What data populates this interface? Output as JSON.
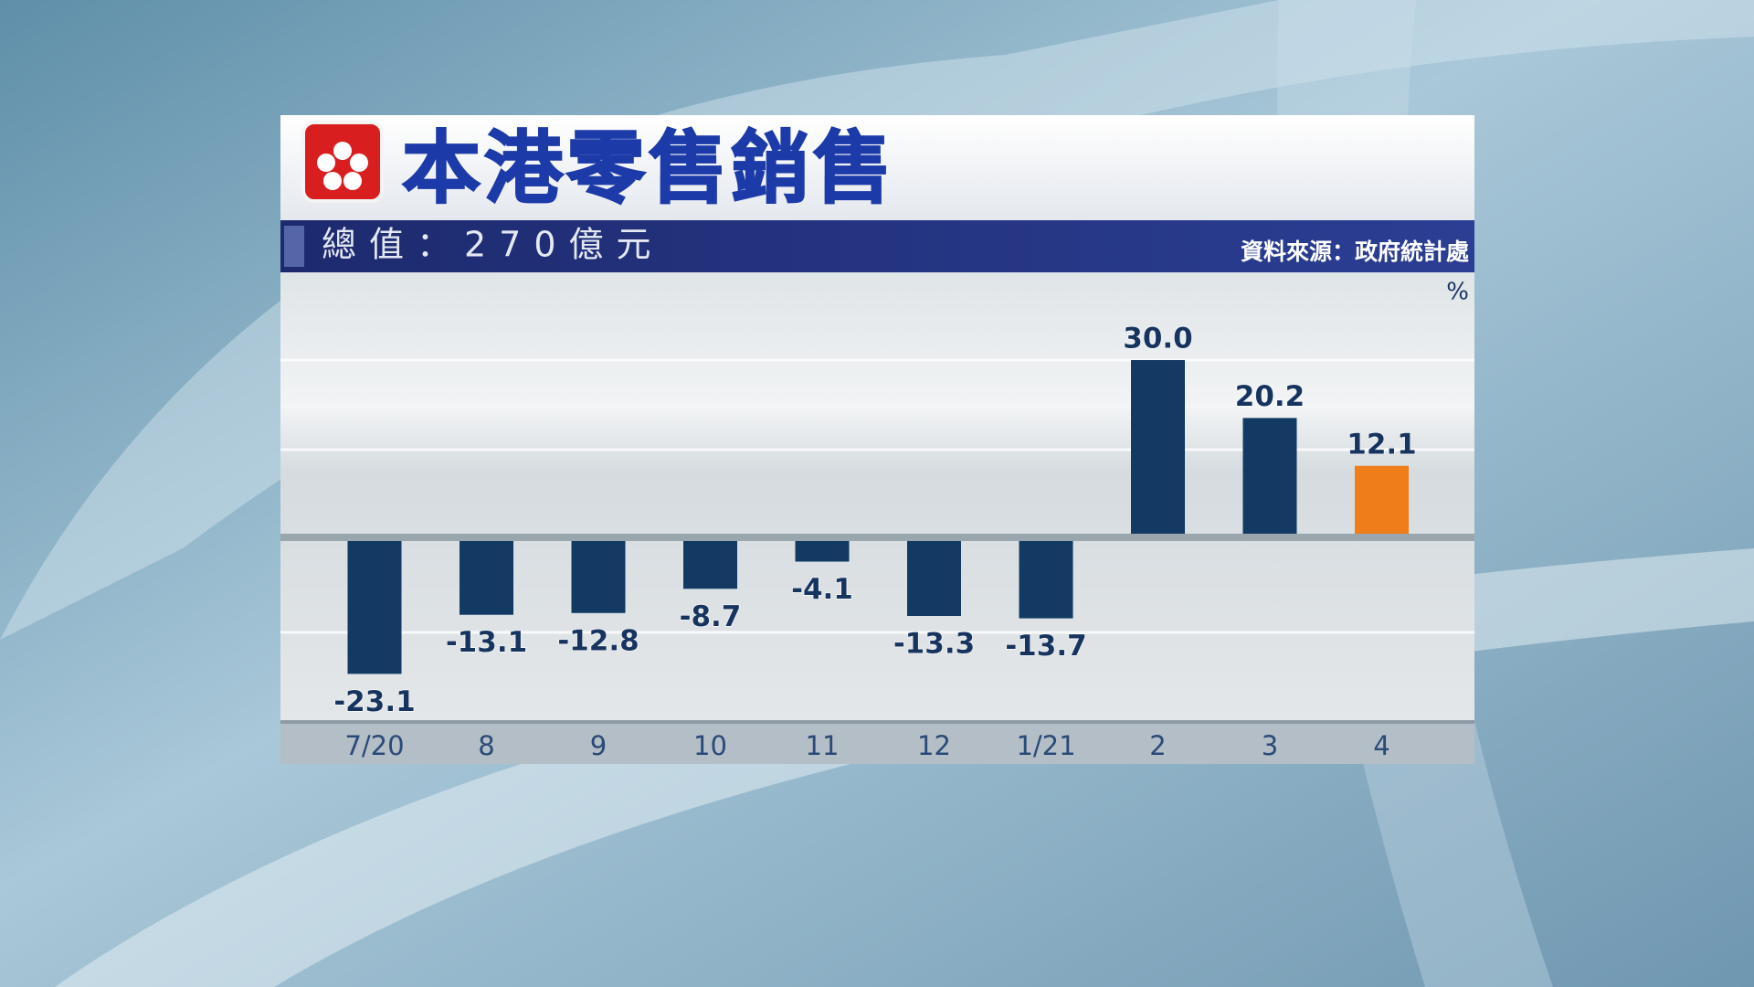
{
  "chart_data": {
    "type": "bar",
    "title": "本港零售銷售",
    "subtitle": "總值：270億元",
    "source": "資料來源：政府統計處",
    "unit": "%",
    "categories": [
      "7/20",
      "8",
      "9",
      "10",
      "11",
      "12",
      "1/21",
      "2",
      "3",
      "4"
    ],
    "values": [
      -23.1,
      -13.1,
      -12.8,
      -8.7,
      -4.1,
      -13.3,
      -13.7,
      30.0,
      20.2,
      12.1
    ],
    "value_labels": [
      "-23.1",
      "-13.1",
      "-12.8",
      "-8.7",
      "-4.1",
      "-13.3",
      "-13.7",
      "30.0",
      "20.2",
      "12.1"
    ],
    "colors": [
      "#123a63",
      "#123a63",
      "#123a63",
      "#123a63",
      "#123a63",
      "#123a63",
      "#123a63",
      "#123a63",
      "#123a63",
      "#ee7d1a"
    ]
  }
}
